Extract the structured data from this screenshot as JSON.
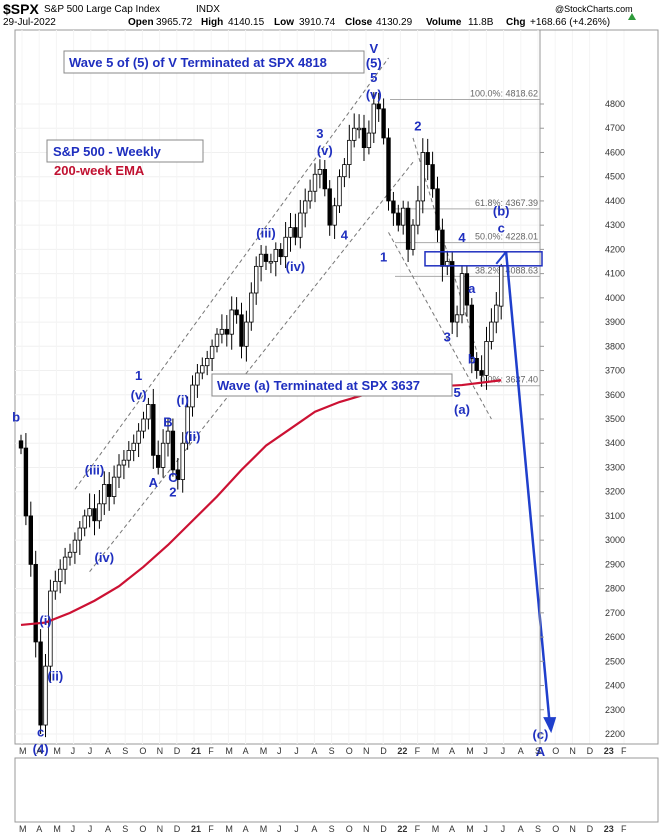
{
  "header": {
    "symbol": "$SPX",
    "name": "S&P 500 Large Cap Index",
    "exchange": "INDX",
    "date": "29-Jul-2022",
    "open_label": "Open",
    "open": "3965.72",
    "high_label": "High",
    "high": "4140.15",
    "low_label": "Low",
    "low": "3910.74",
    "close_label": "Close",
    "close": "4130.29",
    "volume_label": "Volume",
    "volume": "11.8B",
    "chg_label": "Chg",
    "chg": "+168.66 (+4.26%)",
    "watermark": "@StockCharts.com"
  },
  "annotations": {
    "wave5_box": "Wave 5 of (5) of V Terminated at SPX 4818",
    "wavea_box": "Wave (a) Terminated at SPX 3637",
    "legend_title": "S&P 500 - Weekly",
    "legend_ema": "200-week EMA"
  },
  "colors": {
    "price": "#000000",
    "ema": "#cc1133",
    "wave_label": "#1f2fbf",
    "channel": "#666666",
    "projection": "#1f3fcc"
  },
  "chart_data": {
    "type": "candlestick",
    "title": "S&P 500 - Weekly",
    "ylim": [
      2200,
      4850
    ],
    "x_tick_labels": [
      "M",
      "A",
      "M",
      "J",
      "J",
      "A",
      "S",
      "O",
      "N",
      "D",
      "21",
      "F",
      "M",
      "A",
      "M",
      "J",
      "J",
      "A",
      "S",
      "O",
      "N",
      "D",
      "22",
      "F",
      "M",
      "A",
      "M",
      "J",
      "J",
      "A",
      "S",
      "O",
      "N",
      "D",
      "23",
      "F"
    ],
    "y_ticks": [
      2200,
      2300,
      2400,
      2500,
      2600,
      2700,
      2800,
      2900,
      3000,
      3100,
      3200,
      3300,
      3400,
      3500,
      3600,
      3700,
      3800,
      3900,
      4000,
      4100,
      4200,
      4300,
      4400,
      4500,
      4600,
      4700,
      4800
    ],
    "series": [
      {
        "name": "$SPX",
        "anchors": [
          [
            0,
            3380
          ],
          [
            1,
            3100
          ],
          [
            2,
            2900
          ],
          [
            3,
            2580
          ],
          [
            4,
            2237
          ],
          [
            5,
            2480
          ],
          [
            6,
            2790
          ],
          [
            7,
            2830
          ],
          [
            8,
            2880
          ],
          [
            9,
            2930
          ],
          [
            10,
            2950
          ],
          [
            11,
            3000
          ],
          [
            12,
            3050
          ],
          [
            13,
            3100
          ],
          [
            14,
            3130
          ],
          [
            15,
            3080
          ],
          [
            16,
            3150
          ],
          [
            17,
            3230
          ],
          [
            18,
            3180
          ],
          [
            19,
            3260
          ],
          [
            20,
            3310
          ],
          [
            21,
            3330
          ],
          [
            22,
            3370
          ],
          [
            23,
            3400
          ],
          [
            24,
            3450
          ],
          [
            25,
            3500
          ],
          [
            26,
            3560
          ],
          [
            27,
            3350
          ],
          [
            28,
            3300
          ],
          [
            29,
            3400
          ],
          [
            30,
            3450
          ],
          [
            31,
            3290
          ],
          [
            32,
            3250
          ],
          [
            33,
            3400
          ],
          [
            34,
            3550
          ],
          [
            35,
            3640
          ],
          [
            36,
            3690
          ],
          [
            37,
            3720
          ],
          [
            38,
            3750
          ],
          [
            39,
            3800
          ],
          [
            40,
            3850
          ],
          [
            41,
            3870
          ],
          [
            42,
            3850
          ],
          [
            43,
            3950
          ],
          [
            44,
            3930
          ],
          [
            45,
            3800
          ],
          [
            46,
            3900
          ],
          [
            47,
            4020
          ],
          [
            48,
            4130
          ],
          [
            49,
            4180
          ],
          [
            50,
            4150
          ],
          [
            51,
            4150
          ],
          [
            52,
            4200
          ],
          [
            53,
            4170
          ],
          [
            54,
            4250
          ],
          [
            55,
            4290
          ],
          [
            56,
            4250
          ],
          [
            57,
            4350
          ],
          [
            58,
            4400
          ],
          [
            59,
            4440
          ],
          [
            60,
            4510
          ],
          [
            61,
            4530
          ],
          [
            62,
            4450
          ],
          [
            63,
            4300
          ],
          [
            64,
            4380
          ],
          [
            65,
            4500
          ],
          [
            66,
            4550
          ],
          [
            67,
            4650
          ],
          [
            68,
            4700
          ],
          [
            69,
            4700
          ],
          [
            70,
            4620
          ],
          [
            71,
            4680
          ],
          [
            72,
            4800
          ],
          [
            73,
            4780
          ],
          [
            74,
            4660
          ],
          [
            75,
            4400
          ],
          [
            76,
            4350
          ],
          [
            77,
            4300
          ],
          [
            78,
            4370
          ],
          [
            79,
            4200
          ],
          [
            80,
            4300
          ],
          [
            81,
            4400
          ],
          [
            82,
            4600
          ],
          [
            83,
            4550
          ],
          [
            84,
            4450
          ],
          [
            85,
            4280
          ],
          [
            86,
            4130
          ],
          [
            87,
            4150
          ],
          [
            88,
            3900
          ],
          [
            89,
            3930
          ],
          [
            90,
            4100
          ],
          [
            91,
            3970
          ],
          [
            92,
            3750
          ],
          [
            93,
            3700
          ],
          [
            94,
            3680
          ],
          [
            95,
            3820
          ],
          [
            96,
            3900
          ],
          [
            97,
            3970
          ],
          [
            98,
            4130
          ]
        ],
        "last": {
          "open": 3965.72,
          "high": 4140.15,
          "low": 3910.74,
          "close": 4130.29
        }
      },
      {
        "name": "200-week EMA",
        "values": [
          [
            0,
            2650
          ],
          [
            5,
            2660
          ],
          [
            10,
            2700
          ],
          [
            15,
            2750
          ],
          [
            20,
            2810
          ],
          [
            25,
            2890
          ],
          [
            30,
            2980
          ],
          [
            35,
            3080
          ],
          [
            40,
            3180
          ],
          [
            45,
            3290
          ],
          [
            50,
            3390
          ],
          [
            55,
            3460
          ],
          [
            60,
            3530
          ],
          [
            65,
            3570
          ],
          [
            70,
            3600
          ],
          [
            75,
            3620
          ],
          [
            80,
            3630
          ],
          [
            85,
            3635
          ],
          [
            90,
            3640
          ],
          [
            98,
            3660
          ]
        ]
      }
    ],
    "fibonacci": [
      {
        "label": "100.0%: 4818.62",
        "value": 4818.62
      },
      {
        "label": "61.8%: 4367.39",
        "value": 4367.39
      },
      {
        "label": "50.0%: 4228.01",
        "value": 4228.01
      },
      {
        "label": "38.2%: 4088.63",
        "value": 4088.63
      },
      {
        "label": "0.0%: 3637.40",
        "value": 3637.4
      }
    ],
    "wave_labels": [
      {
        "text": "b",
        "x": -1,
        "y": 3490
      },
      {
        "text": "c",
        "x": 4,
        "y": 2190
      },
      {
        "text": "(4)",
        "x": 4,
        "y": 2120
      },
      {
        "text": "(i)",
        "x": 5,
        "y": 2650
      },
      {
        "text": "(ii)",
        "x": 7,
        "y": 2420
      },
      {
        "text": "(iii)",
        "x": 15,
        "y": 3270
      },
      {
        "text": "(iv)",
        "x": 17,
        "y": 2910
      },
      {
        "text": "1",
        "x": 24,
        "y": 3660
      },
      {
        "text": "(v)",
        "x": 24,
        "y": 3580
      },
      {
        "text": "A",
        "x": 27,
        "y": 3220
      },
      {
        "text": "B",
        "x": 30,
        "y": 3470
      },
      {
        "text": "C",
        "x": 31,
        "y": 3240
      },
      {
        "text": "2",
        "x": 31,
        "y": 3180
      },
      {
        "text": "(i)",
        "x": 33,
        "y": 3560
      },
      {
        "text": "(ii)",
        "x": 35,
        "y": 3410
      },
      {
        "text": "(iii)",
        "x": 50,
        "y": 4250
      },
      {
        "text": "(iv)",
        "x": 56,
        "y": 4110
      },
      {
        "text": "3",
        "x": 61,
        "y": 4660
      },
      {
        "text": "(v)",
        "x": 62,
        "y": 4590
      },
      {
        "text": "4",
        "x": 66,
        "y": 4240
      },
      {
        "text": "V",
        "x": 72,
        "y": 5010
      },
      {
        "text": "(5)",
        "x": 72,
        "y": 4950
      },
      {
        "text": "5",
        "x": 72,
        "y": 4890
      },
      {
        "text": "(v)",
        "x": 72,
        "y": 4820
      },
      {
        "text": "1",
        "x": 74,
        "y": 4150
      },
      {
        "text": "2",
        "x": 81,
        "y": 4690
      },
      {
        "text": "3",
        "x": 87,
        "y": 3820
      },
      {
        "text": "4",
        "x": 90,
        "y": 4230
      },
      {
        "text": "a",
        "x": 92,
        "y": 4020
      },
      {
        "text": "5",
        "x": 89,
        "y": 3590
      },
      {
        "text": "(a)",
        "x": 90,
        "y": 3520
      },
      {
        "text": "b",
        "x": 92,
        "y": 3730
      },
      {
        "text": "(b)",
        "x": 98,
        "y": 4340
      },
      {
        "text": "c",
        "x": 98,
        "y": 4270
      },
      {
        "text": "(c)",
        "x": 106,
        "y": 2180
      },
      {
        "text": "A",
        "x": 106,
        "y": 2110
      }
    ],
    "projection": {
      "from": [
        99,
        4190
      ],
      "to": [
        108,
        2220
      ]
    }
  }
}
